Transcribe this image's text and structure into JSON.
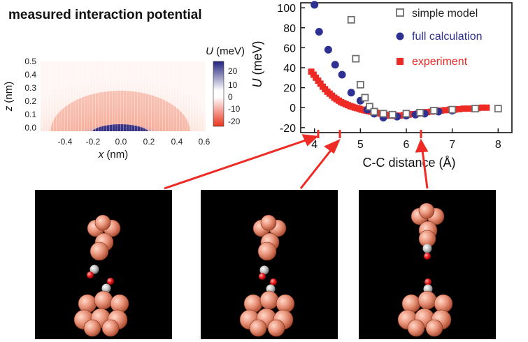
{
  "heatmap": {
    "title": "measured interaction potential",
    "colorbar_label": "U (meV)",
    "colorbar_label_symbol": "U",
    "colorbar_label_unit": " (meV)",
    "colorbar_ticks": [
      "20",
      "10",
      "0",
      "-10",
      "-20"
    ],
    "colorbar_values": [
      20,
      10,
      0,
      -10,
      -20
    ],
    "colors": {
      "positive": "#2a2a8f",
      "zero": "#ffffff",
      "negative": "#e8341c"
    },
    "x_label_symbol": "x",
    "x_label_unit": " (nm)",
    "y_label_symbol": "z",
    "y_label_unit": " (nm)",
    "x_ticks": [
      "-0.4",
      "-0.2",
      "0.0",
      "0.2",
      "0.4",
      "0.6"
    ],
    "y_ticks": [
      "0.5",
      "0.4",
      "0.3",
      "0.2",
      "0.1",
      "0.0"
    ]
  },
  "chart_data": {
    "type": "scatter",
    "xlabel": "C-C distance (Å)",
    "ylabel_symbol": "U",
    "ylabel_unit": " (meV)",
    "xlim": [
      3.7,
      8.3
    ],
    "ylim": [
      -25,
      105
    ],
    "x_ticks": [
      4,
      5,
      6,
      7,
      8
    ],
    "x_tick_labels": [
      "4",
      "5",
      "6",
      "7",
      "8"
    ],
    "y_ticks": [
      100,
      80,
      60,
      40,
      20,
      0,
      -20
    ],
    "y_tick_labels": [
      "100",
      "80",
      "60",
      "40",
      "20",
      "0",
      "-20"
    ],
    "legend_position": "top-right",
    "series": [
      {
        "name": "simple model",
        "marker": "open-square",
        "color": "#6e6e6e",
        "points": [
          [
            4.8,
            88
          ],
          [
            4.9,
            49
          ],
          [
            5.0,
            23
          ],
          [
            5.1,
            10
          ],
          [
            5.2,
            1
          ],
          [
            5.3,
            -4
          ],
          [
            5.5,
            -6
          ],
          [
            5.7,
            -7
          ],
          [
            6.0,
            -6
          ],
          [
            6.3,
            -5
          ],
          [
            6.6,
            -3
          ],
          [
            7.0,
            -2
          ],
          [
            7.5,
            -1
          ],
          [
            8.0,
            -1
          ]
        ]
      },
      {
        "name": "full calculation",
        "marker": "circle",
        "color": "#2e3192",
        "points": [
          [
            4.0,
            103
          ],
          [
            4.1,
            76
          ],
          [
            4.3,
            58
          ],
          [
            4.45,
            43
          ],
          [
            4.6,
            33
          ],
          [
            4.8,
            15
          ],
          [
            5.0,
            7
          ],
          [
            5.15,
            -2
          ],
          [
            5.3,
            -6
          ],
          [
            5.5,
            -10
          ],
          [
            5.8,
            -9
          ],
          [
            6.0,
            -8
          ],
          [
            6.2,
            -7
          ],
          [
            6.4,
            -6
          ],
          [
            6.7,
            -4
          ],
          [
            7.0,
            -3
          ]
        ]
      },
      {
        "name": "experiment",
        "marker": "square",
        "color": "#ee2a24",
        "points": [
          [
            3.93,
            36
          ],
          [
            3.98,
            33
          ],
          [
            4.03,
            30
          ],
          [
            4.08,
            27
          ],
          [
            4.13,
            24
          ],
          [
            4.18,
            21
          ],
          [
            4.23,
            18.5
          ],
          [
            4.28,
            16
          ],
          [
            4.33,
            14
          ],
          [
            4.38,
            12
          ],
          [
            4.43,
            10
          ],
          [
            4.48,
            8.5
          ],
          [
            4.53,
            7
          ],
          [
            4.58,
            5.5
          ],
          [
            4.63,
            4.5
          ],
          [
            4.68,
            3.5
          ],
          [
            4.73,
            2.5
          ],
          [
            4.78,
            1.5
          ],
          [
            4.83,
            0.8
          ],
          [
            4.88,
            0
          ],
          [
            4.93,
            -0.5
          ],
          [
            4.98,
            -1.2
          ],
          [
            5.03,
            -2
          ],
          [
            5.08,
            -2.5
          ],
          [
            5.13,
            -3
          ],
          [
            5.18,
            -3.5
          ],
          [
            5.23,
            -4
          ],
          [
            5.28,
            -4.5
          ],
          [
            5.33,
            -5
          ],
          [
            5.38,
            -5.5
          ],
          [
            5.45,
            -6
          ],
          [
            5.55,
            -7
          ],
          [
            5.65,
            -8
          ],
          [
            5.75,
            -8
          ],
          [
            5.85,
            -8
          ],
          [
            5.95,
            -7.5
          ],
          [
            6.05,
            -7
          ],
          [
            6.15,
            -6.5
          ],
          [
            6.25,
            -6
          ],
          [
            6.35,
            -5
          ],
          [
            6.45,
            -4.5
          ],
          [
            6.55,
            -4
          ],
          [
            6.65,
            -3.5
          ],
          [
            6.75,
            -3
          ],
          [
            6.85,
            -2.5
          ],
          [
            6.95,
            -2
          ],
          [
            7.05,
            -2
          ],
          [
            7.15,
            -1.5
          ],
          [
            7.25,
            -1
          ],
          [
            7.35,
            -1
          ],
          [
            7.45,
            -1
          ],
          [
            7.55,
            -0.5
          ],
          [
            7.65,
            0
          ],
          [
            7.75,
            0
          ]
        ]
      }
    ]
  }
}
